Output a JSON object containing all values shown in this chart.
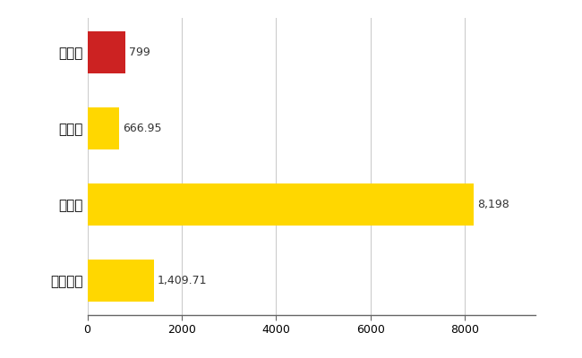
{
  "categories": [
    "全国平均",
    "県最大",
    "県平均",
    "東御市"
  ],
  "values": [
    1409.71,
    8198,
    666.95,
    799
  ],
  "bar_colors": [
    "#FFD700",
    "#FFD700",
    "#FFD700",
    "#CC2222"
  ],
  "value_labels": [
    "1,409.71",
    "8,198",
    "666.95",
    "799"
  ],
  "xlim": [
    0,
    9500
  ],
  "xticks": [
    0,
    2000,
    4000,
    6000,
    8000
  ],
  "background_color": "#FFFFFF",
  "grid_color": "#CCCCCC",
  "bar_height": 0.55
}
